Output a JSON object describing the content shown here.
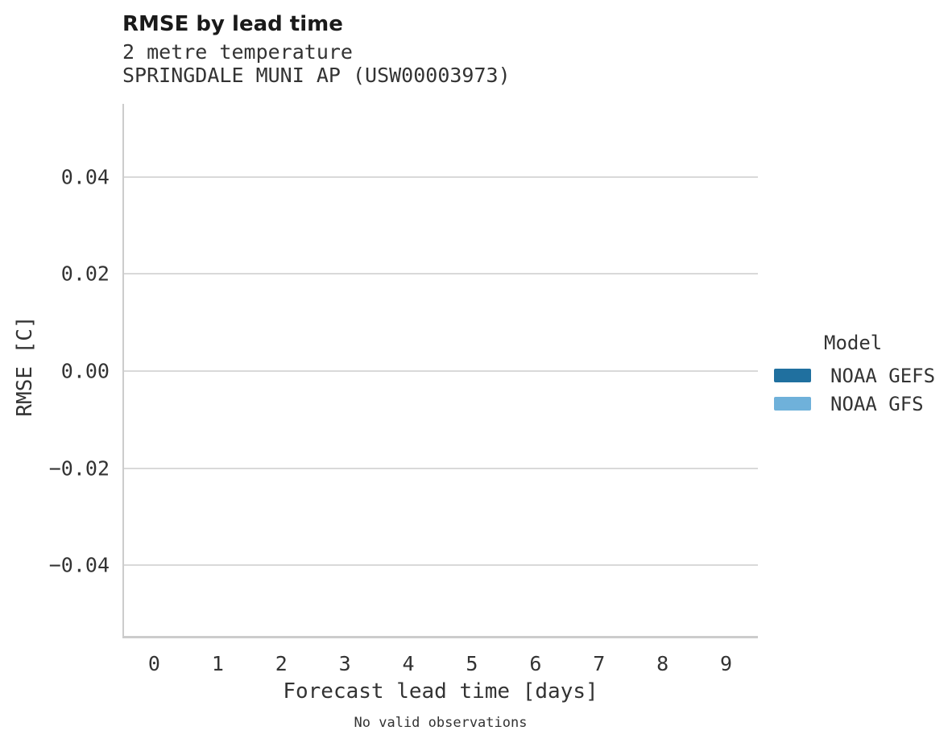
{
  "header": {
    "title": "RMSE by lead time",
    "subtitle_line1": "2 metre temperature",
    "subtitle_line2": "SPRINGDALE MUNI AP (USW00003973)"
  },
  "footer": {
    "note": "No valid observations"
  },
  "chart_data": {
    "type": "line",
    "title": "RMSE by lead time",
    "subtitle": [
      "2 metre temperature",
      "SPRINGDALE MUNI AP (USW00003973)"
    ],
    "xlabel": "Forecast lead time [days]",
    "ylabel": "RMSE [C]",
    "x_tick_labels": [
      "0",
      "1",
      "2",
      "3",
      "4",
      "5",
      "6",
      "7",
      "8",
      "9"
    ],
    "x_tick_values": [
      0,
      1,
      2,
      3,
      4,
      5,
      6,
      7,
      8,
      9
    ],
    "y_tick_labels": [
      "0.04",
      "0.02",
      "0.00",
      "−0.02",
      "−0.04"
    ],
    "y_tick_values": [
      0.04,
      0.02,
      0.0,
      -0.02,
      -0.04
    ],
    "xlim": [
      -0.5,
      9.5
    ],
    "ylim": [
      -0.055,
      0.055
    ],
    "grid": "horizontal-only",
    "plot_is_empty": true,
    "annotation": "No valid observations",
    "legend": {
      "title": "Model",
      "position": "right-of-plot",
      "entries": [
        {
          "label": "NOAA GEFS",
          "color": "#20709f"
        },
        {
          "label": "NOAA GFS",
          "color": "#6fb1da"
        }
      ]
    },
    "series": [
      {
        "name": "NOAA GEFS",
        "color": "#20709f",
        "points": []
      },
      {
        "name": "NOAA GFS",
        "color": "#6fb1da",
        "points": []
      }
    ],
    "colors": {
      "gridline": "#d9d9d9",
      "axis": "#cccccc",
      "title_text": "#1a1a1a",
      "body_text": "#333333"
    }
  }
}
